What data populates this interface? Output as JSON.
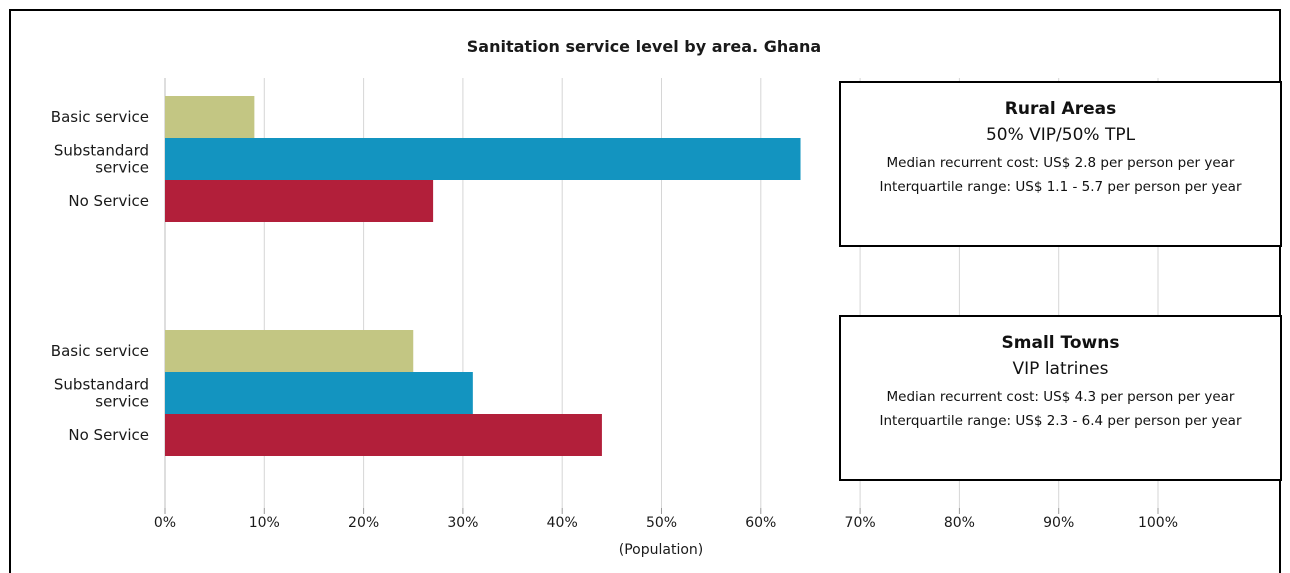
{
  "chart_data": {
    "type": "bar",
    "orientation": "horizontal",
    "title": "Sanitation service level by area. Ghana",
    "xlabel": "(Population)",
    "xlim": [
      0,
      100
    ],
    "x_ticks": [
      "0%",
      "10%",
      "20%",
      "30%",
      "40%",
      "50%",
      "60%",
      "70%",
      "80%",
      "90%",
      "100%"
    ],
    "grid": "vertical",
    "colors": {
      "basic": "#c3c683",
      "substandard": "#1394c0",
      "none": "#b21f3a"
    },
    "groups": [
      {
        "name": "Rural Areas",
        "bars": [
          {
            "label": "Basic service",
            "value": 9,
            "key": "basic"
          },
          {
            "label": "Substandard service",
            "value": 64,
            "key": "substandard"
          },
          {
            "label": "No Service",
            "value": 27,
            "key": "none"
          }
        ]
      },
      {
        "name": "Small Towns",
        "bars": [
          {
            "label": "Basic service",
            "value": 25,
            "key": "basic"
          },
          {
            "label": "Substandard service",
            "value": 31,
            "key": "substandard"
          },
          {
            "label": "No Service",
            "value": 44,
            "key": "none"
          }
        ]
      }
    ],
    "category_labels": {
      "basic": [
        "Basic service"
      ],
      "substandard": [
        "Substandard",
        "service"
      ],
      "none": [
        "No Service"
      ]
    },
    "annotations": [
      {
        "title": "Rural Areas",
        "subtitle": "50% VIP/50% TPL",
        "line1": "Median recurrent cost: US$ 2.8 per person per year",
        "line2": "Interquartile range: US$ 1.1 - 5.7 per person per year"
      },
      {
        "title": "Small Towns",
        "subtitle": "VIP latrines",
        "line1": "Median recurrent cost: US$ 4.3 per person per year",
        "line2": "Interquartile range: US$ 2.3 - 6.4 per person per year"
      }
    ]
  }
}
